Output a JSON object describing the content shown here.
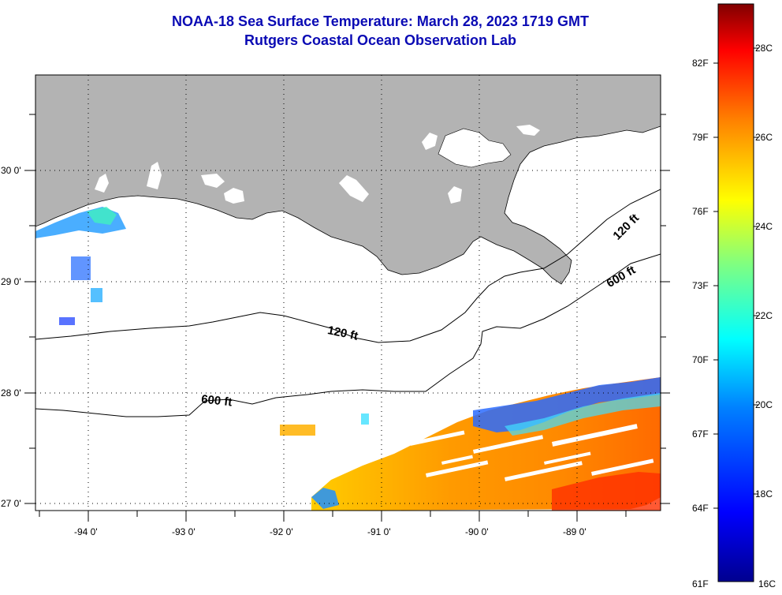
{
  "title": {
    "line1": "NOAA-18 Sea Surface Temperature:  March 28, 2023 1719 GMT",
    "line2": "Rutgers Coastal Ocean Observation Lab"
  },
  "map": {
    "x_ticks": [
      "-94 0'",
      "-93 0'",
      "-92 0'",
      "-91 0'",
      "-90 0'",
      "-89 0'"
    ],
    "y_ticks": [
      "30 0'",
      "29 0'",
      "28 0'",
      "27 0'"
    ],
    "land_color": "#b3b3b3",
    "contours": [
      {
        "label": "120 ft",
        "depth": 120
      },
      {
        "label": "600 ft",
        "depth": 600
      },
      {
        "label": "120 ft",
        "depth": 120
      },
      {
        "label": "600 ft",
        "depth": 600
      }
    ]
  },
  "colorbar": {
    "fahrenheit": [
      "82F",
      "79F",
      "76F",
      "73F",
      "70F",
      "67F",
      "64F",
      "61F"
    ],
    "celsius": [
      "28C",
      "26C",
      "24C",
      "22C",
      "20C",
      "18C",
      "16C"
    ],
    "min_c": 16,
    "max_c": 29,
    "colors": [
      "#00008f",
      "#0000ff",
      "#0080ff",
      "#00ffff",
      "#80ff80",
      "#ffff00",
      "#ff8000",
      "#ff0000",
      "#800000"
    ]
  }
}
